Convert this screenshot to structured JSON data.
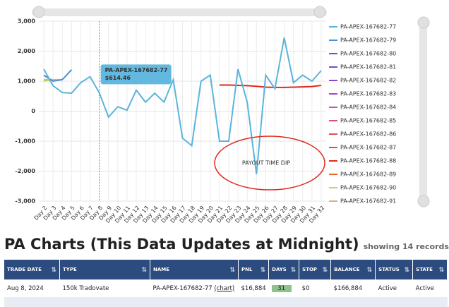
{
  "chart_data": {
    "type": "line",
    "categories": [
      "Day 2",
      "Day 3",
      "Day 4",
      "Day 5",
      "Day 6",
      "Day 7",
      "Day 8",
      "Day 9",
      "Day 10",
      "Day 11",
      "Day 12",
      "Day 13",
      "Day 14",
      "Day 15",
      "Day 16",
      "Day 17",
      "Day 18",
      "Day 19",
      "Day 20",
      "Day 21",
      "Day 22",
      "Day 23",
      "Day 24",
      "Day 25",
      "Day 26",
      "Day 27",
      "Day 28",
      "Day 29",
      "Day 30",
      "Day 31",
      "Day 32"
    ],
    "ylim": [
      -3000,
      3000
    ],
    "yticks": [
      {
        "value": -3000,
        "label": "-3,000"
      },
      {
        "value": -2000,
        "label": "-2,000"
      },
      {
        "value": -1000,
        "label": "-1,000"
      },
      0,
      {
        "value": 1000,
        "label": "1,000"
      },
      {
        "value": 2000,
        "label": "2,000"
      },
      {
        "value": 3000,
        "label": "3,000"
      }
    ],
    "grid": true,
    "legend": "right",
    "annotation": "PAYOUT TIME DIP",
    "series": [
      {
        "name": "PA-APEX-167682-77",
        "color": "#5ab4dc",
        "values": [
          1400,
          850,
          620,
          600,
          950,
          1150,
          614.46,
          -200,
          150,
          30,
          700,
          300,
          600,
          300,
          1050,
          -900,
          -1150,
          1000,
          1200,
          -1000,
          -1000,
          1400,
          300,
          -2100,
          1200,
          750,
          2450,
          950,
          1200,
          1000,
          1350
        ],
        "value_labels": [
          null,
          null,
          null,
          null,
          null,
          null,
          "$614.46",
          null,
          null,
          null,
          null,
          null,
          null,
          null,
          null,
          null,
          null,
          null,
          null,
          null,
          null,
          null,
          null,
          null,
          null,
          null,
          null,
          null,
          null,
          null,
          null
        ]
      },
      {
        "name": "PA-APEX-167682-79",
        "color": "#4a8fd4",
        "values": [
          1200,
          1000,
          1050,
          1380,
          null,
          null,
          null,
          null,
          null,
          null,
          null,
          null,
          null,
          null,
          null,
          null,
          null,
          null,
          null,
          null,
          null,
          null,
          null,
          null,
          null,
          null,
          null,
          null,
          null,
          null,
          null
        ]
      },
      {
        "name": "PA-APEX-167682-80",
        "color": "#5b5fd0",
        "values": [
          null,
          null,
          null,
          null,
          null,
          null,
          null,
          null,
          null,
          null,
          null,
          null,
          null,
          null,
          null,
          null,
          null,
          null,
          null,
          null,
          null,
          null,
          null,
          null,
          null,
          null,
          null,
          null,
          null,
          null,
          null
        ]
      },
      {
        "name": "PA-APEX-167682-81",
        "color": "#6f4fd0",
        "values": [
          null,
          null,
          null,
          null,
          null,
          null,
          null,
          null,
          null,
          null,
          null,
          null,
          null,
          null,
          null,
          null,
          null,
          null,
          null,
          null,
          null,
          null,
          null,
          null,
          null,
          null,
          null,
          null,
          null,
          null,
          null
        ]
      },
      {
        "name": "PA-APEX-167682-82",
        "color": "#8a47cc",
        "values": [
          null,
          null,
          null,
          null,
          null,
          null,
          null,
          null,
          null,
          null,
          null,
          null,
          null,
          null,
          null,
          null,
          null,
          null,
          null,
          null,
          null,
          null,
          null,
          null,
          null,
          null,
          null,
          null,
          null,
          null,
          null
        ]
      },
      {
        "name": "PA-APEX-167682-83",
        "color": "#a448cc",
        "values": [
          null,
          null,
          null,
          null,
          null,
          null,
          null,
          null,
          null,
          null,
          null,
          null,
          null,
          null,
          null,
          null,
          null,
          null,
          null,
          null,
          null,
          null,
          null,
          null,
          null,
          null,
          null,
          null,
          null,
          null,
          null
        ]
      },
      {
        "name": "PA-APEX-167682-84",
        "color": "#c64fc4",
        "values": [
          null,
          null,
          null,
          null,
          null,
          null,
          null,
          null,
          null,
          null,
          null,
          null,
          null,
          null,
          null,
          null,
          null,
          null,
          null,
          null,
          null,
          null,
          null,
          null,
          null,
          null,
          null,
          null,
          null,
          null,
          null
        ]
      },
      {
        "name": "PA-APEX-167682-85",
        "color": "#d4507e",
        "values": [
          null,
          null,
          null,
          null,
          null,
          null,
          null,
          null,
          null,
          null,
          null,
          null,
          null,
          null,
          null,
          null,
          null,
          null,
          null,
          null,
          null,
          null,
          null,
          null,
          null,
          null,
          null,
          null,
          null,
          null,
          null
        ]
      },
      {
        "name": "PA-APEX-167682-86",
        "color": "#d9505a",
        "values": [
          null,
          null,
          null,
          null,
          null,
          null,
          null,
          null,
          null,
          null,
          null,
          null,
          null,
          null,
          null,
          null,
          null,
          null,
          null,
          null,
          null,
          null,
          null,
          null,
          null,
          null,
          null,
          null,
          null,
          null,
          null
        ]
      },
      {
        "name": "PA-APEX-167682-87",
        "color": "#e0503a",
        "values": [
          null,
          null,
          null,
          null,
          null,
          null,
          null,
          null,
          null,
          null,
          null,
          null,
          null,
          null,
          null,
          null,
          null,
          null,
          null,
          null,
          null,
          null,
          null,
          null,
          null,
          null,
          null,
          null,
          null,
          null,
          null
        ]
      },
      {
        "name": "PA-APEX-167682-88",
        "color": "#e0281e",
        "values": [
          null,
          null,
          null,
          null,
          null,
          null,
          null,
          null,
          null,
          null,
          null,
          null,
          null,
          null,
          null,
          null,
          null,
          null,
          null,
          870,
          870,
          860,
          850,
          830,
          800,
          790,
          790,
          800,
          810,
          820,
          860
        ]
      },
      {
        "name": "PA-APEX-167682-89",
        "color": "#e66a20",
        "values": [
          null,
          null,
          null,
          null,
          null,
          null,
          null,
          null,
          null,
          null,
          null,
          null,
          null,
          null,
          null,
          null,
          null,
          null,
          null,
          null,
          null,
          null,
          null,
          null,
          null,
          null,
          null,
          null,
          null,
          null,
          null
        ]
      },
      {
        "name": "PA-APEX-167682-90",
        "color": "#c6d45a",
        "values": [
          1000,
          1050,
          null,
          null,
          null,
          null,
          null,
          null,
          null,
          null,
          null,
          null,
          null,
          null,
          null,
          null,
          null,
          null,
          null,
          null,
          null,
          null,
          null,
          null,
          null,
          null,
          null,
          null,
          null,
          null,
          null
        ]
      },
      {
        "name": "PA-APEX-167682-91",
        "color": "#d4b870",
        "values": [
          1050,
          1050,
          1050,
          null,
          null,
          null,
          null,
          null,
          null,
          null,
          null,
          null,
          null,
          null,
          null,
          null,
          null,
          null,
          null,
          null,
          null,
          null,
          null,
          null,
          null,
          null,
          null,
          null,
          null,
          null,
          null
        ]
      }
    ]
  },
  "table": {
    "title": "PA Charts (This Data Updates at Midnight)",
    "subtitle": "showing 14 records",
    "columns": [
      "TRADE DATE",
      "TYPE",
      "NAME",
      "PNL",
      "DAYS",
      "STOP",
      "BALANCE",
      "STATUS",
      "STATE"
    ],
    "link_text": "(chart)",
    "rows": [
      [
        "Aug 8, 2024",
        "150k Tradovate",
        "PA-APEX-167682-77",
        "$16,884",
        "31",
        "$0",
        "$166,884",
        "Active",
        "Active"
      ]
    ]
  }
}
